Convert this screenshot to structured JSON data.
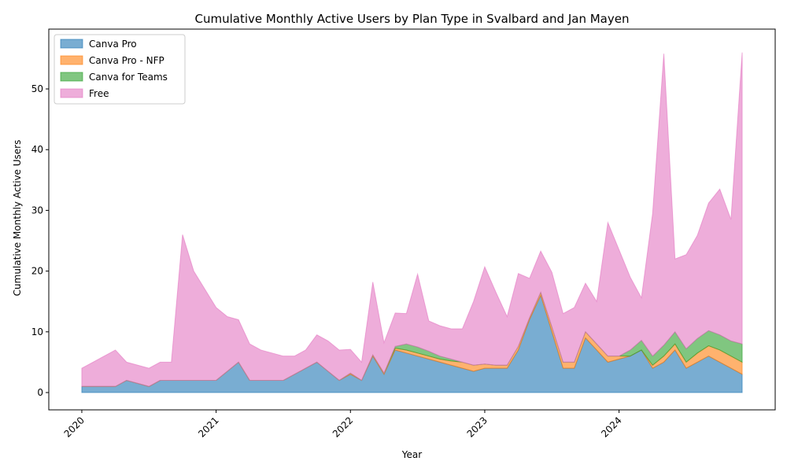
{
  "chart_data": {
    "type": "area",
    "stacked": true,
    "title": "Cumulative Monthly Active Users by Plan Type in Svalbard and Jan Mayen",
    "xlabel": "Year",
    "ylabel": "Cumulative Monthly Active Users",
    "x_ticks": [
      "2020",
      "2021",
      "2022",
      "2023",
      "2024"
    ],
    "y_ticks": [
      0,
      10,
      20,
      30,
      40,
      50
    ],
    "ylim": [
      -2.85,
      59.85
    ],
    "legend_position": "upper-left",
    "grid": false,
    "x": [
      "2020-01",
      "2020-02",
      "2020-03",
      "2020-04",
      "2020-05",
      "2020-06",
      "2020-07",
      "2020-08",
      "2020-09",
      "2020-10",
      "2020-11",
      "2020-12",
      "2021-01",
      "2021-02",
      "2021-03",
      "2021-04",
      "2021-05",
      "2021-06",
      "2021-07",
      "2021-08",
      "2021-09",
      "2021-10",
      "2021-11",
      "2021-12",
      "2022-01",
      "2022-02",
      "2022-03",
      "2022-04",
      "2022-05",
      "2022-06",
      "2022-07",
      "2022-08",
      "2022-09",
      "2022-10",
      "2022-11",
      "2022-12",
      "2023-01",
      "2023-02",
      "2023-03",
      "2023-04",
      "2023-05",
      "2023-06",
      "2023-07",
      "2023-08",
      "2023-09",
      "2023-10",
      "2023-11",
      "2023-12",
      "2024-01",
      "2024-02",
      "2024-03",
      "2024-04",
      "2024-05",
      "2024-06",
      "2024-07",
      "2024-08",
      "2024-09",
      "2024-10",
      "2024-11",
      "2024-12"
    ],
    "series": [
      {
        "name": "Canva Pro",
        "color": "#1f77b4",
        "values": [
          1,
          1,
          1,
          1,
          2,
          1.5,
          1,
          2,
          2,
          2,
          2,
          2,
          2,
          3.5,
          5,
          2,
          2,
          2,
          2,
          3,
          4,
          5,
          3.5,
          2,
          3,
          2,
          6,
          3,
          7,
          6.5,
          6,
          5.5,
          5,
          4.5,
          4,
          3.5,
          4,
          4,
          4,
          7,
          12,
          16,
          10,
          4,
          4,
          9,
          7,
          5,
          5.5,
          6,
          7,
          4,
          5,
          7,
          4,
          5,
          6,
          5,
          4,
          3
        ]
      },
      {
        "name": "Canva Pro - NFP",
        "color": "#ff7f0e",
        "values": [
          0,
          0,
          0,
          0,
          0,
          0,
          0,
          0,
          0,
          0,
          0,
          0,
          0,
          0,
          0,
          0,
          0,
          0,
          0,
          0,
          0,
          0,
          0,
          0,
          0.2,
          0,
          0.2,
          0.2,
          0.3,
          0.5,
          0.5,
          0.5,
          0.5,
          0.7,
          1,
          1,
          0.7,
          0.5,
          0.5,
          0.6,
          0.3,
          0.5,
          0.8,
          1,
          1,
          1,
          1,
          1,
          0.5,
          0,
          0,
          0.5,
          1,
          1,
          1,
          1.5,
          1.7,
          2,
          2,
          2
        ]
      },
      {
        "name": "Canva for Teams",
        "color": "#2ca02c",
        "values": [
          0,
          0,
          0,
          0,
          0,
          0,
          0,
          0,
          0,
          0,
          0,
          0,
          0,
          0,
          0,
          0,
          0,
          0,
          0,
          0,
          0,
          0,
          0,
          0,
          0,
          0,
          0,
          0,
          0.3,
          1,
          1,
          0.8,
          0.5,
          0.3,
          0,
          0,
          0,
          0,
          0,
          0,
          0,
          0,
          0,
          0,
          0,
          0,
          0,
          0,
          0,
          1,
          1.6,
          1.5,
          1.8,
          2,
          2.2,
          2.4,
          2.5,
          2.5,
          2.5,
          3
        ]
      },
      {
        "name": "Free",
        "color": "#e377c2",
        "values": [
          3,
          4,
          5,
          6,
          3,
          3,
          3,
          3,
          3,
          24,
          18,
          15,
          12,
          9,
          7,
          6,
          5,
          4.5,
          4,
          3,
          3,
          4.5,
          5,
          5,
          3.9,
          3,
          12,
          5,
          5.5,
          5,
          12,
          5,
          5,
          5,
          5.5,
          10.5,
          16,
          12,
          8,
          12,
          6.5,
          6.8,
          9,
          8,
          9,
          8,
          7,
          22,
          17.5,
          12,
          7,
          23.5,
          48,
          12,
          15.5,
          17,
          21,
          24,
          20,
          48
        ]
      }
    ]
  }
}
